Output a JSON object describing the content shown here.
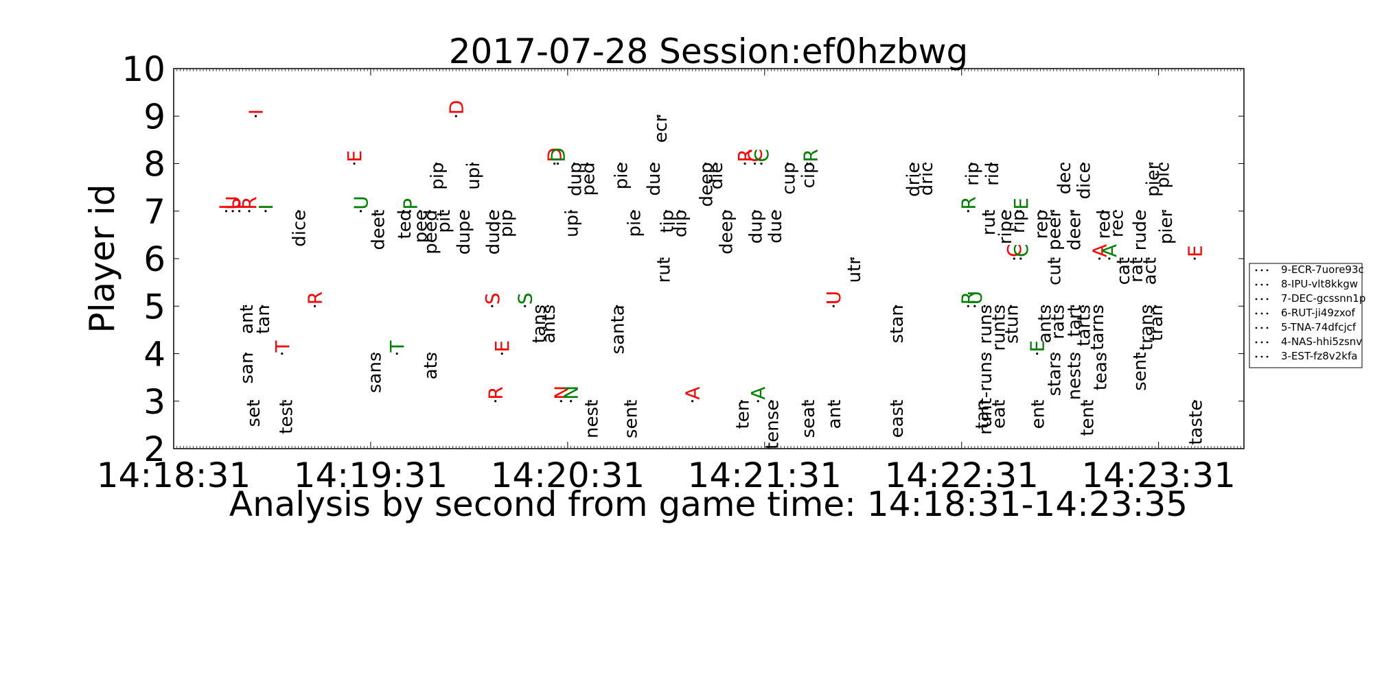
{
  "chart_data": {
    "type": "scatter",
    "title": "2017-07-28 Session:ef0hzbwg",
    "xlabel": "Analysis by second from game time: 14:18:31-14:23:35",
    "ylabel": "Player id",
    "x_start": "14:18:31",
    "x_end": "14:23:35",
    "xlim_seconds": [
      0,
      326
    ],
    "ylim": [
      2,
      10
    ],
    "xticks": [
      {
        "label": "14:18:31",
        "value": 0
      },
      {
        "label": "14:19:31",
        "value": 60
      },
      {
        "label": "14:20:31",
        "value": 120
      },
      {
        "label": "14:21:31",
        "value": 180
      },
      {
        "label": "14:22:31",
        "value": 240
      },
      {
        "label": "14:23:31",
        "value": 300
      }
    ],
    "yticks": [
      2,
      3,
      4,
      5,
      6,
      7,
      8,
      9,
      10
    ],
    "legend": {
      "placement": "right",
      "entries": [
        "9-ECR-7uore93c",
        "8-IPU-vlt8kkgw",
        "7-DEC-gcssnn1p",
        "6-RUT-ji49zxof",
        "5-TNA-74dfcjcf",
        "4-NAS-hhi5zsnv",
        "3-EST-fz8v2kfa"
      ]
    },
    "colors": {
      "red": "#ff0000",
      "green": "#008000",
      "black": "#000000"
    },
    "events": [
      {
        "x": 25,
        "y": 9,
        "text": "I",
        "color": "red"
      },
      {
        "x": 86,
        "y": 9,
        "text": "D",
        "color": "red"
      },
      {
        "x": 148,
        "y": 9,
        "text": "ecr",
        "color": "black"
      },
      {
        "x": 55,
        "y": 8,
        "text": "E",
        "color": "red"
      },
      {
        "x": 80,
        "y": 8,
        "text": "pip",
        "color": "black"
      },
      {
        "x": 91,
        "y": 8,
        "text": "upi",
        "color": "black"
      },
      {
        "x": 116,
        "y": 8,
        "text": "D",
        "color": "red"
      },
      {
        "x": 117,
        "y": 8,
        "text": "D",
        "color": "green"
      },
      {
        "x": 122,
        "y": 8,
        "text": "dup",
        "color": "black"
      },
      {
        "x": 126,
        "y": 8,
        "text": "ped",
        "color": "black"
      },
      {
        "x": 136,
        "y": 8,
        "text": "pie",
        "color": "black"
      },
      {
        "x": 146,
        "y": 8,
        "text": "due",
        "color": "black"
      },
      {
        "x": 162,
        "y": 8,
        "text": "deep",
        "color": "black"
      },
      {
        "x": 165,
        "y": 8,
        "text": "die",
        "color": "black"
      },
      {
        "x": 174,
        "y": 8,
        "text": "R",
        "color": "red"
      },
      {
        "x": 177,
        "y": 8,
        "text": "C",
        "color": "red"
      },
      {
        "x": 179,
        "y": 8,
        "text": "C",
        "color": "green"
      },
      {
        "x": 187,
        "y": 8,
        "text": "cup",
        "color": "black"
      },
      {
        "x": 193,
        "y": 8,
        "text": "cip",
        "color": "black"
      },
      {
        "x": 194,
        "y": 8,
        "text": "R",
        "color": "green"
      },
      {
        "x": 225,
        "y": 8,
        "text": "drie",
        "color": "black"
      },
      {
        "x": 229,
        "y": 8,
        "text": "dric",
        "color": "black"
      },
      {
        "x": 243,
        "y": 8,
        "text": "rip",
        "color": "black"
      },
      {
        "x": 249,
        "y": 8,
        "text": "rid",
        "color": "black"
      },
      {
        "x": 271,
        "y": 8,
        "text": "dec",
        "color": "black"
      },
      {
        "x": 277,
        "y": 8,
        "text": "dice",
        "color": "black"
      },
      {
        "x": 298,
        "y": 8,
        "text": "pier",
        "color": "black"
      },
      {
        "x": 301,
        "y": 8,
        "text": "pic",
        "color": "black"
      },
      {
        "x": 16,
        "y": 7,
        "text": "I",
        "color": "red"
      },
      {
        "x": 18,
        "y": 7,
        "text": "U",
        "color": "red"
      },
      {
        "x": 20,
        "y": 7,
        "text": "P",
        "color": "red"
      },
      {
        "x": 23,
        "y": 7,
        "text": "R",
        "color": "red"
      },
      {
        "x": 28,
        "y": 7,
        "text": "I",
        "color": "green"
      },
      {
        "x": 38,
        "y": 7,
        "text": "dice",
        "color": "black"
      },
      {
        "x": 57,
        "y": 7,
        "text": "U",
        "color": "green"
      },
      {
        "x": 62,
        "y": 7,
        "text": "deet",
        "color": "black"
      },
      {
        "x": 70,
        "y": 7,
        "text": "ted",
        "color": "black"
      },
      {
        "x": 72,
        "y": 7,
        "text": "P",
        "color": "green"
      },
      {
        "x": 75,
        "y": 7,
        "text": "pee",
        "color": "black"
      },
      {
        "x": 78,
        "y": 7,
        "text": "peed",
        "color": "black"
      },
      {
        "x": 82,
        "y": 7,
        "text": "pit",
        "color": "black"
      },
      {
        "x": 88,
        "y": 7,
        "text": "dupe",
        "color": "black"
      },
      {
        "x": 97,
        "y": 7,
        "text": "dude",
        "color": "black"
      },
      {
        "x": 101,
        "y": 7,
        "text": "pip",
        "color": "black"
      },
      {
        "x": 121,
        "y": 7,
        "text": "upi",
        "color": "black"
      },
      {
        "x": 140,
        "y": 7,
        "text": "pie",
        "color": "black"
      },
      {
        "x": 150,
        "y": 7,
        "text": "tip",
        "color": "black"
      },
      {
        "x": 154,
        "y": 7,
        "text": "dip",
        "color": "black"
      },
      {
        "x": 168,
        "y": 7,
        "text": "deep",
        "color": "black"
      },
      {
        "x": 177,
        "y": 7,
        "text": "dup",
        "color": "black"
      },
      {
        "x": 183,
        "y": 7,
        "text": "due",
        "color": "black"
      },
      {
        "x": 242,
        "y": 7,
        "text": "R",
        "color": "green"
      },
      {
        "x": 248,
        "y": 7,
        "text": "rut",
        "color": "black"
      },
      {
        "x": 253,
        "y": 7,
        "text": "ripe",
        "color": "black"
      },
      {
        "x": 257,
        "y": 7,
        "text": "rip",
        "color": "black"
      },
      {
        "x": 258,
        "y": 7,
        "text": "E",
        "color": "green"
      },
      {
        "x": 264,
        "y": 7,
        "text": "rep",
        "color": "black"
      },
      {
        "x": 268,
        "y": 7,
        "text": "peer",
        "color": "black"
      },
      {
        "x": 274,
        "y": 7,
        "text": "deer",
        "color": "black"
      },
      {
        "x": 283,
        "y": 7,
        "text": "red",
        "color": "black"
      },
      {
        "x": 287,
        "y": 7,
        "text": "rec",
        "color": "black"
      },
      {
        "x": 294,
        "y": 7,
        "text": "rude",
        "color": "black"
      },
      {
        "x": 302,
        "y": 7,
        "text": "pier",
        "color": "black"
      },
      {
        "x": 149,
        "y": 6,
        "text": "rut",
        "color": "black"
      },
      {
        "x": 207,
        "y": 6,
        "text": "utr",
        "color": "black"
      },
      {
        "x": 256,
        "y": 6,
        "text": "C",
        "color": "red"
      },
      {
        "x": 258,
        "y": 6,
        "text": "C",
        "color": "green"
      },
      {
        "x": 268,
        "y": 6,
        "text": "cut",
        "color": "black"
      },
      {
        "x": 282,
        "y": 6,
        "text": "A",
        "color": "red"
      },
      {
        "x": 285,
        "y": 6,
        "text": "A",
        "color": "green"
      },
      {
        "x": 289,
        "y": 6,
        "text": "cat",
        "color": "black"
      },
      {
        "x": 293,
        "y": 6,
        "text": "rat",
        "color": "black"
      },
      {
        "x": 297,
        "y": 6,
        "text": "act",
        "color": "black"
      },
      {
        "x": 311,
        "y": 6,
        "text": "E",
        "color": "red"
      },
      {
        "x": 22,
        "y": 5,
        "text": "ant",
        "color": "black"
      },
      {
        "x": 27,
        "y": 5,
        "text": "tan",
        "color": "black"
      },
      {
        "x": 43,
        "y": 5,
        "text": "R",
        "color": "red"
      },
      {
        "x": 97,
        "y": 5,
        "text": "S",
        "color": "red"
      },
      {
        "x": 107,
        "y": 5,
        "text": "S",
        "color": "green"
      },
      {
        "x": 111,
        "y": 5,
        "text": "tans",
        "color": "black"
      },
      {
        "x": 114,
        "y": 5,
        "text": "ants",
        "color": "black"
      },
      {
        "x": 135,
        "y": 5,
        "text": "santa",
        "color": "black"
      },
      {
        "x": 201,
        "y": 5,
        "text": "U",
        "color": "red"
      },
      {
        "x": 220,
        "y": 5,
        "text": "stan",
        "color": "black"
      },
      {
        "x": 242,
        "y": 5,
        "text": "R",
        "color": "green"
      },
      {
        "x": 244,
        "y": 5,
        "text": "U",
        "color": "green"
      },
      {
        "x": 247,
        "y": 5,
        "text": "runs",
        "color": "black"
      },
      {
        "x": 251,
        "y": 5,
        "text": "runts",
        "color": "black"
      },
      {
        "x": 255,
        "y": 5,
        "text": "stun",
        "color": "black"
      },
      {
        "x": 265,
        "y": 5,
        "text": "ants",
        "color": "black"
      },
      {
        "x": 269,
        "y": 5,
        "text": "rats",
        "color": "black"
      },
      {
        "x": 274,
        "y": 5,
        "text": "tart",
        "color": "black"
      },
      {
        "x": 277,
        "y": 5,
        "text": "tarts",
        "color": "black"
      },
      {
        "x": 281,
        "y": 5,
        "text": "tarns",
        "color": "black"
      },
      {
        "x": 296,
        "y": 5,
        "text": "trans",
        "color": "black"
      },
      {
        "x": 299,
        "y": 5,
        "text": "tran",
        "color": "black"
      },
      {
        "x": 22,
        "y": 4,
        "text": "san",
        "color": "black"
      },
      {
        "x": 33,
        "y": 4,
        "text": "T",
        "color": "red"
      },
      {
        "x": 61,
        "y": 4,
        "text": "sans",
        "color": "black"
      },
      {
        "x": 68,
        "y": 4,
        "text": "T",
        "color": "green"
      },
      {
        "x": 78,
        "y": 4,
        "text": "ats",
        "color": "black"
      },
      {
        "x": 100,
        "y": 4,
        "text": "E",
        "color": "red"
      },
      {
        "x": 247,
        "y": 4,
        "text": "runt-runs",
        "color": "black"
      },
      {
        "x": 263,
        "y": 4,
        "text": "E",
        "color": "green"
      },
      {
        "x": 268,
        "y": 4,
        "text": "stars",
        "color": "black"
      },
      {
        "x": 274,
        "y": 4,
        "text": "nests",
        "color": "black"
      },
      {
        "x": 282,
        "y": 4,
        "text": "teas",
        "color": "black"
      },
      {
        "x": 294,
        "y": 4,
        "text": "sent",
        "color": "black"
      },
      {
        "x": 24,
        "y": 3,
        "text": "set",
        "color": "black"
      },
      {
        "x": 34,
        "y": 3,
        "text": "test",
        "color": "black"
      },
      {
        "x": 98,
        "y": 3,
        "text": "R",
        "color": "red"
      },
      {
        "x": 118,
        "y": 3,
        "text": "N",
        "color": "red"
      },
      {
        "x": 121,
        "y": 3,
        "text": "N",
        "color": "green"
      },
      {
        "x": 127,
        "y": 3,
        "text": "nest",
        "color": "black"
      },
      {
        "x": 139,
        "y": 3,
        "text": "sent",
        "color": "black"
      },
      {
        "x": 158,
        "y": 3,
        "text": "A",
        "color": "red"
      },
      {
        "x": 173,
        "y": 3,
        "text": "ten",
        "color": "black"
      },
      {
        "x": 178,
        "y": 3,
        "text": "A",
        "color": "green"
      },
      {
        "x": 182,
        "y": 3,
        "text": "tense",
        "color": "black"
      },
      {
        "x": 193,
        "y": 3,
        "text": "seat",
        "color": "black"
      },
      {
        "x": 201,
        "y": 3,
        "text": "ant",
        "color": "black"
      },
      {
        "x": 220,
        "y": 3,
        "text": "east",
        "color": "black"
      },
      {
        "x": 246,
        "y": 3,
        "text": "tan",
        "color": "black"
      },
      {
        "x": 251,
        "y": 3,
        "text": "eat",
        "color": "black"
      },
      {
        "x": 263,
        "y": 3,
        "text": "ent",
        "color": "black"
      },
      {
        "x": 278,
        "y": 3,
        "text": "tent",
        "color": "black"
      },
      {
        "x": 311,
        "y": 3,
        "text": "taste",
        "color": "black"
      }
    ]
  }
}
